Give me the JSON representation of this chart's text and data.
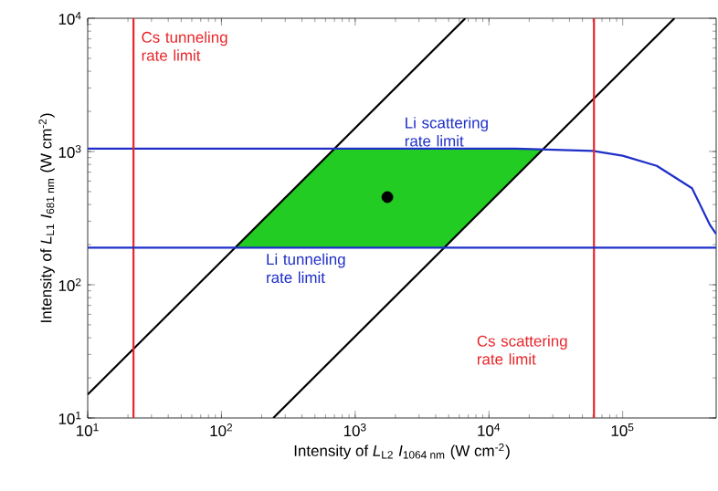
{
  "chart_data": {
    "type": "line",
    "xlabel": "Intensity of *L*$_{L2}$ *I*$_{1064 nm}$ (W cm$^{-2}$)",
    "ylabel": "Intensity of *L*$_{L1}$ *I*$_{681 nm}$ (W cm$^{-2}$)",
    "log": "xy",
    "xlim": [
      10,
      500000
    ],
    "ylim": [
      10,
      10000
    ],
    "xticks": [
      {
        "value": 10,
        "label": "10$^{1}$"
      },
      {
        "value": 100,
        "label": "10$^{2}$"
      },
      {
        "value": 1000,
        "label": "10$^{3}$"
      },
      {
        "value": 10000,
        "label": "10$^{4}$"
      },
      {
        "value": 100000,
        "label": "10$^{5}$"
      }
    ],
    "yticks": [
      {
        "value": 10,
        "label": "10$^{1}$"
      },
      {
        "value": 100,
        "label": "10$^{2}$"
      },
      {
        "value": 1000,
        "label": "10$^{3}$"
      },
      {
        "value": 10000,
        "label": "10$^{4}$"
      }
    ],
    "series": [
      {
        "type": "area",
        "color": "#22cc22",
        "x": [
          127,
          700,
          25600,
          4630
        ],
        "values": [
          190,
          1050,
          1050,
          190
        ]
      },
      {
        "color": "#000000",
        "x": [
          10,
          6667
        ],
        "values": [
          15,
          10000
        ]
      },
      {
        "color": "#000000",
        "x": [
          244,
          244000
        ],
        "values": [
          10,
          10000
        ]
      },
      {
        "name": "Li scattering rate limit",
        "color": "#1f2fc8",
        "x": [
          10,
          16000,
          60000,
          100000,
          180000,
          330000,
          450000,
          500000
        ],
        "values": [
          1050,
          1050,
          1010,
          930,
          780,
          530,
          280,
          240
        ]
      },
      {
        "type": "scatter",
        "marker": "circle",
        "color": "#000000",
        "x": [
          1740
        ],
        "values": [
          455
        ]
      }
    ],
    "ref_lines": [
      {
        "axis": "x",
        "value": 22,
        "label": "Cs tunneling rate limit",
        "color": "#e8262a"
      },
      {
        "axis": "x",
        "value": 61000,
        "label": "Cs scattering rate limit",
        "color": "#e8262a"
      },
      {
        "axis": "y",
        "value": 190,
        "label": "Li tunneling rate limit",
        "color": "#1f2fc8"
      }
    ]
  }
}
